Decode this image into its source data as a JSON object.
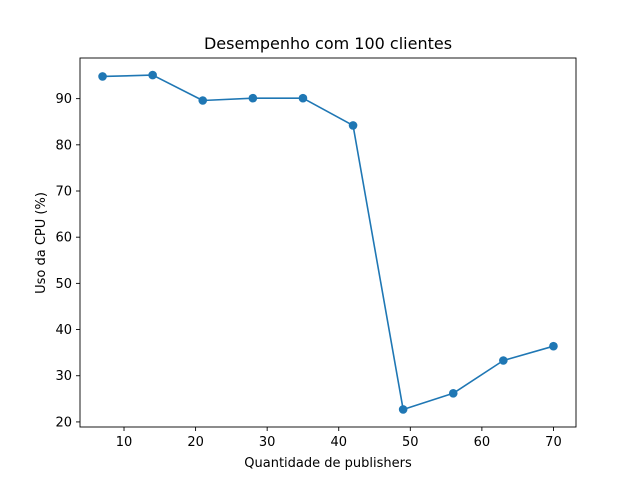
{
  "chart_data": {
    "type": "line",
    "title": "Desempenho com 100 clientes",
    "xlabel": "Quantidade de publishers",
    "ylabel": "Uso da CPU (%)",
    "xlim": [
      3.85,
      73.15
    ],
    "ylim": [
      18.9,
      98.8
    ],
    "xticks": [
      10,
      20,
      30,
      40,
      50,
      60,
      70
    ],
    "yticks": [
      20,
      30,
      40,
      50,
      60,
      70,
      80,
      90
    ],
    "grid": false,
    "legend": "none",
    "series": [
      {
        "color": "#1f77b4",
        "marker": "circle",
        "x": [
          7,
          14,
          21,
          28,
          35,
          42,
          49,
          56,
          63,
          70
        ],
        "y": [
          94.8,
          95.1,
          89.6,
          90.1,
          90.1,
          84.2,
          22.7,
          26.2,
          33.3,
          36.4
        ]
      }
    ]
  }
}
